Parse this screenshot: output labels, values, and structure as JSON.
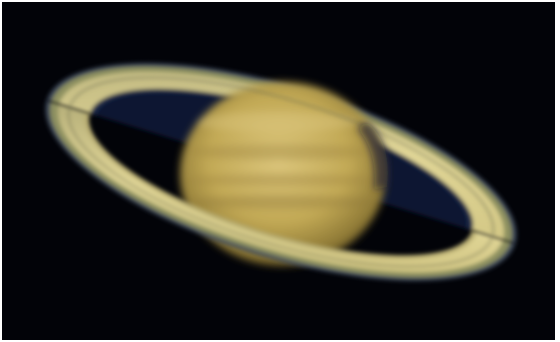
{
  "image": {
    "subject": "saturn-planet-icon",
    "colors": {
      "sky": "#020308",
      "globe_light": "#d9c47a",
      "globe_mid": "#b59d4e",
      "globe_dark": "#6e5a26",
      "ring_bright": "#d8cc8c",
      "ring_mid": "#9c9a62",
      "ring_gap": "#0c1530",
      "ring_edge": "#3e4a5a"
    }
  }
}
